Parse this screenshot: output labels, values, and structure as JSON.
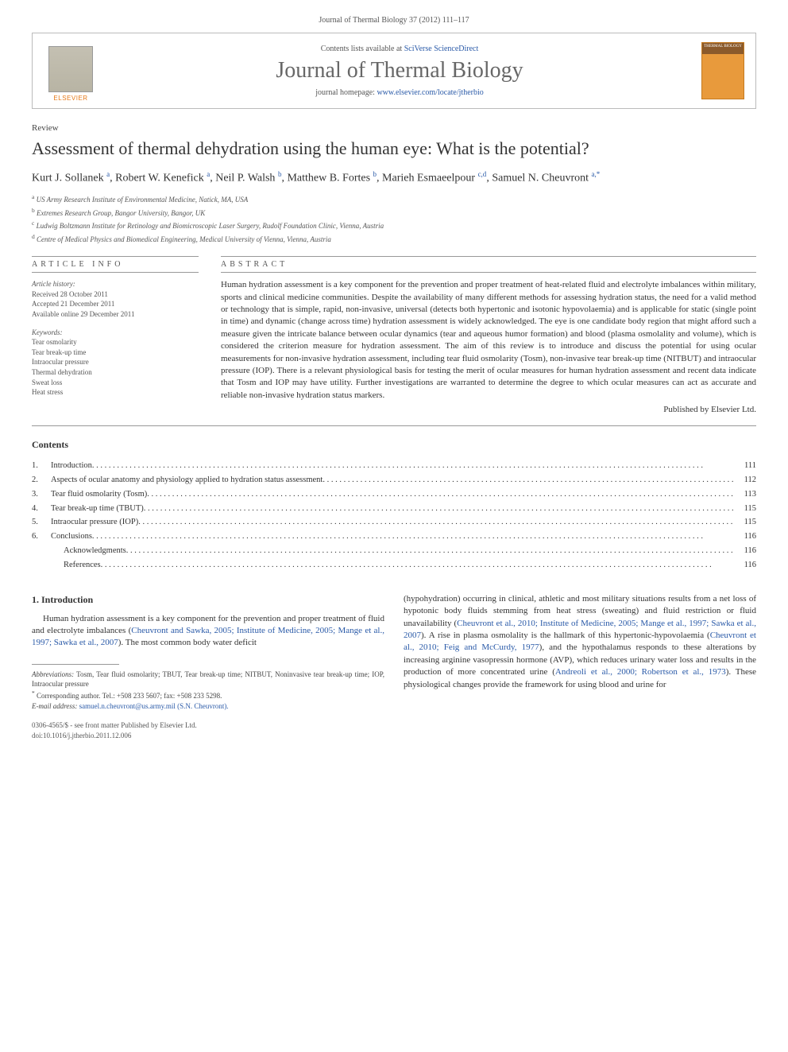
{
  "header": {
    "citation": "Journal of Thermal Biology 37 (2012) 111–117",
    "contents_prefix": "Contents lists available at ",
    "contents_link": "SciVerse ScienceDirect",
    "journal_name": "Journal of Thermal Biology",
    "homepage_prefix": "journal homepage: ",
    "homepage_url": "www.elsevier.com/locate/jtherbio",
    "elsevier_label": "ELSEVIER",
    "cover_label": "THERMAL BIOLOGY"
  },
  "article": {
    "type_label": "Review",
    "title": "Assessment of thermal dehydration using the human eye: What is the potential?",
    "authors_html": "Kurt J. Sollanek <sup>a</sup>, Robert W. Kenefick <sup>a</sup>, Neil P. Walsh <sup>b</sup>, Matthew B. Fortes <sup>b</sup>, Marieh Esmaeelpour <sup>c,d</sup>, Samuel N. Cheuvront <sup>a,*</sup>",
    "affiliations": [
      "a  US Army Research Institute of Environmental Medicine, Natick, MA, USA",
      "b  Extremes Research Group, Bangor University, Bangor, UK",
      "c  Ludwig Boltzmann Institute for Retinology and Biomicroscopic Laser Surgery, Rudolf Foundation Clinic, Vienna, Austria",
      "d  Centre of Medical Physics and Biomedical Engineering, Medical University of Vienna, Vienna, Austria"
    ]
  },
  "info": {
    "heading": "article info",
    "history_label": "Article history:",
    "received": "Received 28 October 2011",
    "accepted": "Accepted 21 December 2011",
    "online": "Available online 29 December 2011",
    "keywords_label": "Keywords:",
    "keywords": [
      "Tear osmolarity",
      "Tear break-up time",
      "Intraocular pressure",
      "Thermal dehydration",
      "Sweat loss",
      "Heat stress"
    ]
  },
  "abstract": {
    "heading": "abstract",
    "text": "Human hydration assessment is a key component for the prevention and proper treatment of heat-related fluid and electrolyte imbalances within military, sports and clinical medicine communities. Despite the availability of many different methods for assessing hydration status, the need for a valid method or technology that is simple, rapid, non-invasive, universal (detects both hypertonic and isotonic hypovolaemia) and is applicable for static (single point in time) and dynamic (change across time) hydration assessment is widely acknowledged. The eye is one candidate body region that might afford such a measure given the intricate balance between ocular dynamics (tear and aqueous humor formation) and blood (plasma osmolality and volume), which is considered the criterion measure for hydration assessment. The aim of this review is to introduce and discuss the potential for using ocular measurements for non-invasive hydration assessment, including tear fluid osmolarity (Tosm), non-invasive tear break-up time (NITBUT) and intraocular pressure (IOP). There is a relevant physiological basis for testing the merit of ocular measures for human hydration assessment and recent data indicate that Tosm and IOP may have utility. Further investigations are warranted to determine the degree to which ocular measures can act as accurate and reliable non-invasive hydration status markers.",
    "publisher_line": "Published by Elsevier Ltd."
  },
  "contents": {
    "heading": "Contents",
    "items": [
      {
        "num": "1.",
        "title": "Introduction",
        "page": "111"
      },
      {
        "num": "2.",
        "title": "Aspects of ocular anatomy and physiology applied to hydration status assessment",
        "page": "112"
      },
      {
        "num": "3.",
        "title": "Tear fluid osmolarity (Tosm)",
        "page": "113"
      },
      {
        "num": "4.",
        "title": "Tear break-up time (TBUT)",
        "page": "115"
      },
      {
        "num": "5.",
        "title": "Intraocular pressure (IOP)",
        "page": "115"
      },
      {
        "num": "6.",
        "title": "Conclusions",
        "page": "116"
      },
      {
        "num": "",
        "title": "Acknowledgments",
        "page": "116",
        "indent": true
      },
      {
        "num": "",
        "title": "References",
        "page": "116",
        "indent": true
      }
    ]
  },
  "body": {
    "section_heading": "1.  Introduction",
    "left_para": "Human hydration assessment is a key component for the prevention and proper treatment of fluid and electrolyte imbalances (",
    "left_cite": "Cheuvront and Sawka, 2005; Institute of Medicine, 2005; Mange et al., 1997; Sawka et al., 2007",
    "left_suffix": "). The most common body water deficit",
    "right_para_1": "(hypohydration) occurring in clinical, athletic and most military situations results from a net loss of hypotonic body fluids stemming from heat stress (sweating) and fluid restriction or fluid unavailability (",
    "right_cite_1": "Cheuvront et al., 2010; Institute of Medicine, 2005; Mange et al., 1997; Sawka et al., 2007",
    "right_mid_1": "). A rise in plasma osmolality is the hallmark of this hypertonic-hypovolaemia (",
    "right_cite_2": "Cheuvront et al., 2010; Feig and McCurdy, 1977",
    "right_mid_2": "), and the hypothalamus responds to these alterations by increasing arginine vasopressin hormone (AVP), which reduces urinary water loss and results in the production of more concentrated urine (",
    "right_cite_3": "Andreoli et al., 2000; Robertson et al., 1973",
    "right_suffix": "). These physiological changes provide the framework for using blood and urine for"
  },
  "footnotes": {
    "abbrev_label": "Abbreviations:",
    "abbrev_text": " Tosm, Tear fluid osmolarity; TBUT, Tear break-up time; NITBUT, Noninvasive tear break-up time; IOP, Intraocular pressure",
    "corr_symbol": "*",
    "corr_text": "Corresponding author. Tel.: +508 233 5607; fax: +508 233 5298.",
    "email_label": "E-mail address:",
    "email": " samuel.n.cheuvront@us.army.mil (S.N. Cheuvront)."
  },
  "bottom": {
    "line1": "0306-4565/$ - see front matter Published by Elsevier Ltd.",
    "line2": "doi:10.1016/j.jtherbio.2011.12.006"
  },
  "colors": {
    "link": "#2a5aa8",
    "orange": "#e67817",
    "rule": "#999999",
    "text": "#333333",
    "muted": "#555555",
    "cover_bg": "#e89a3c"
  }
}
